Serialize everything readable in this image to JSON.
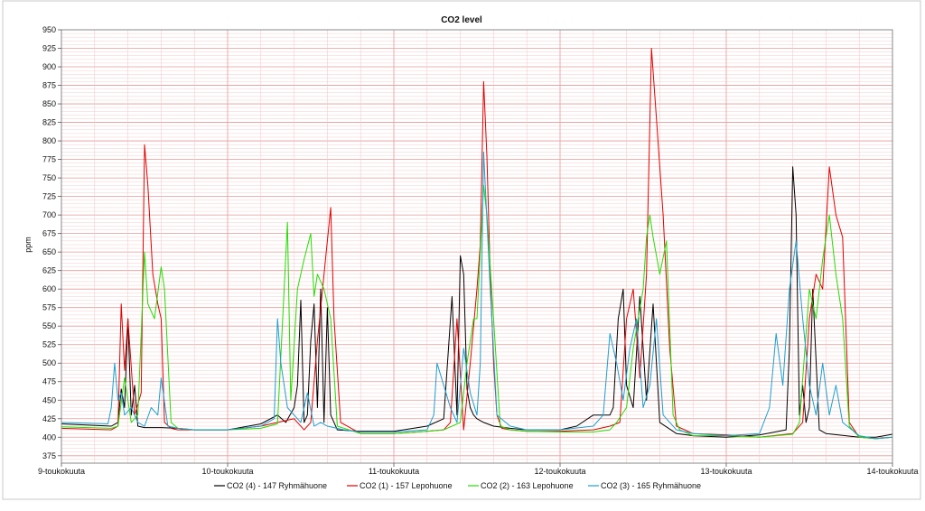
{
  "chart_data": {
    "type": "line",
    "title": "CO2 level",
    "ylabel": "ppm",
    "xlabel": "",
    "ylim": [
      365,
      950
    ],
    "yticks": [
      375,
      400,
      425,
      450,
      475,
      500,
      525,
      550,
      575,
      600,
      625,
      650,
      675,
      700,
      725,
      750,
      775,
      800,
      825,
      850,
      875,
      900,
      925,
      950
    ],
    "x_ticks": [
      "9-toukokuuta",
      "10-toukokuuta",
      "11-toukokuuta",
      "12-toukokuuta",
      "13-toukokuuta",
      "14-toukokuuta"
    ],
    "xlim": [
      0,
      5
    ],
    "grid": true,
    "legend": "bottom",
    "series": [
      {
        "name": "CO2  (4) - 147 Ryhmähuone",
        "color": "#000000",
        "x": [
          0,
          0.3,
          0.34,
          0.36,
          0.38,
          0.4,
          0.42,
          0.44,
          0.46,
          0.5,
          0.6,
          0.7,
          0.8,
          1.0,
          1.2,
          1.3,
          1.35,
          1.4,
          1.42,
          1.44,
          1.46,
          1.48,
          1.5,
          1.52,
          1.54,
          1.56,
          1.58,
          1.6,
          1.62,
          1.66,
          1.8,
          2.0,
          2.2,
          2.3,
          2.35,
          2.38,
          2.4,
          2.42,
          2.44,
          2.46,
          2.48,
          2.5,
          2.54,
          2.6,
          2.7,
          2.8,
          3.0,
          3.1,
          3.2,
          3.3,
          3.32,
          3.35,
          3.38,
          3.4,
          3.44,
          3.48,
          3.52,
          3.56,
          3.6,
          3.7,
          3.8,
          4.0,
          4.2,
          4.36,
          4.38,
          4.4,
          4.42,
          4.44,
          4.46,
          4.48,
          4.5,
          4.52,
          4.56,
          4.6,
          4.8,
          4.9,
          5.0
        ],
        "values": [
          418,
          415,
          420,
          465,
          440,
          560,
          430,
          470,
          415,
          413,
          413,
          412,
          410,
          410,
          418,
          430,
          420,
          440,
          470,
          585,
          420,
          430,
          530,
          580,
          440,
          600,
          420,
          575,
          430,
          410,
          408,
          408,
          415,
          425,
          590,
          430,
          645,
          620,
          465,
          440,
          430,
          425,
          420,
          415,
          412,
          410,
          410,
          415,
          430,
          430,
          440,
          560,
          600,
          470,
          440,
          590,
          450,
          580,
          420,
          405,
          402,
          400,
          403,
          410,
          520,
          765,
          700,
          430,
          470,
          420,
          440,
          600,
          410,
          405,
          400,
          400,
          404
        ]
      },
      {
        "name": "CO2 (1) - 157 Lepohuone",
        "color": "#e00000",
        "x": [
          0,
          0.3,
          0.34,
          0.36,
          0.38,
          0.4,
          0.44,
          0.48,
          0.5,
          0.52,
          0.55,
          0.58,
          0.6,
          0.62,
          0.66,
          0.7,
          0.8,
          1.0,
          1.2,
          1.3,
          1.4,
          1.46,
          1.5,
          1.54,
          1.58,
          1.62,
          1.64,
          1.68,
          1.8,
          2.0,
          2.2,
          2.3,
          2.34,
          2.38,
          2.42,
          2.46,
          2.5,
          2.52,
          2.54,
          2.56,
          2.58,
          2.6,
          2.62,
          2.65,
          2.7,
          2.8,
          3.0,
          3.2,
          3.3,
          3.36,
          3.4,
          3.44,
          3.48,
          3.52,
          3.55,
          3.58,
          3.62,
          3.66,
          3.7,
          3.8,
          4.0,
          4.2,
          4.4,
          4.46,
          4.5,
          4.54,
          4.58,
          4.62,
          4.66,
          4.7,
          4.74,
          4.8,
          4.9,
          5.0
        ],
        "values": [
          412,
          410,
          415,
          580,
          490,
          560,
          430,
          460,
          795,
          740,
          620,
          580,
          560,
          420,
          412,
          410,
          410,
          410,
          415,
          420,
          425,
          410,
          420,
          530,
          620,
          710,
          560,
          420,
          405,
          405,
          408,
          410,
          420,
          560,
          410,
          500,
          600,
          660,
          880,
          780,
          620,
          500,
          430,
          412,
          410,
          408,
          408,
          410,
          415,
          420,
          560,
          600,
          480,
          620,
          925,
          830,
          700,
          520,
          415,
          405,
          403,
          400,
          405,
          420,
          560,
          620,
          600,
          765,
          700,
          670,
          420,
          400,
          398,
          400
        ]
      },
      {
        "name": "CO2 (2) - 163 Lepohuone",
        "color": "#22dd00",
        "x": [
          0,
          0.3,
          0.34,
          0.38,
          0.42,
          0.46,
          0.5,
          0.52,
          0.56,
          0.6,
          0.62,
          0.66,
          0.7,
          0.8,
          1.0,
          1.2,
          1.3,
          1.36,
          1.38,
          1.42,
          1.46,
          1.5,
          1.52,
          1.54,
          1.58,
          1.62,
          1.66,
          1.8,
          2.0,
          2.2,
          2.3,
          2.4,
          2.44,
          2.48,
          2.5,
          2.54,
          2.56,
          2.6,
          2.64,
          2.7,
          2.8,
          3.0,
          3.2,
          3.3,
          3.34,
          3.4,
          3.44,
          3.5,
          3.52,
          3.54,
          3.56,
          3.6,
          3.64,
          3.68,
          3.72,
          3.8,
          4.0,
          4.2,
          4.4,
          4.44,
          4.5,
          4.54,
          4.58,
          4.62,
          4.66,
          4.7,
          4.74,
          4.8,
          4.9,
          5.0
        ],
        "values": [
          414,
          412,
          415,
          480,
          420,
          430,
          650,
          580,
          560,
          630,
          600,
          420,
          412,
          410,
          410,
          412,
          418,
          690,
          450,
          600,
          640,
          675,
          590,
          620,
          600,
          560,
          415,
          405,
          405,
          408,
          410,
          420,
          500,
          560,
          560,
          740,
          700,
          560,
          415,
          410,
          408,
          407,
          407,
          410,
          420,
          440,
          520,
          600,
          670,
          700,
          670,
          620,
          665,
          430,
          410,
          402,
          402,
          400,
          404,
          420,
          600,
          560,
          640,
          700,
          620,
          560,
          415,
          400,
          398,
          400
        ]
      },
      {
        "name": "CO2 (3) - 165 Ryhmähuone",
        "color": "#1aa0d0",
        "x": [
          0,
          0.28,
          0.3,
          0.32,
          0.34,
          0.36,
          0.38,
          0.42,
          0.46,
          0.5,
          0.54,
          0.58,
          0.6,
          0.64,
          0.7,
          0.8,
          1.0,
          1.2,
          1.28,
          1.3,
          1.32,
          1.34,
          1.36,
          1.4,
          1.44,
          1.48,
          1.52,
          1.56,
          1.6,
          1.7,
          1.8,
          2.0,
          2.2,
          2.24,
          2.26,
          2.3,
          2.34,
          2.38,
          2.42,
          2.46,
          2.5,
          2.52,
          2.54,
          2.58,
          2.62,
          2.7,
          2.8,
          3.0,
          3.2,
          3.26,
          3.3,
          3.34,
          3.38,
          3.42,
          3.46,
          3.5,
          3.54,
          3.58,
          3.62,
          3.7,
          3.8,
          4.0,
          4.2,
          4.26,
          4.3,
          4.34,
          4.38,
          4.42,
          4.46,
          4.5,
          4.54,
          4.58,
          4.62,
          4.66,
          4.7,
          4.8,
          4.9,
          5.0
        ],
        "values": [
          420,
          418,
          440,
          500,
          450,
          460,
          430,
          440,
          420,
          415,
          440,
          430,
          480,
          415,
          412,
          410,
          410,
          415,
          425,
          560,
          500,
          470,
          440,
          430,
          420,
          460,
          415,
          420,
          415,
          410,
          407,
          407,
          410,
          430,
          500,
          470,
          440,
          420,
          520,
          460,
          430,
          500,
          785,
          600,
          430,
          415,
          410,
          410,
          415,
          430,
          540,
          500,
          450,
          520,
          560,
          440,
          470,
          560,
          430,
          410,
          405,
          402,
          405,
          440,
          540,
          470,
          600,
          665,
          560,
          470,
          430,
          500,
          430,
          470,
          420,
          402,
          398,
          400
        ]
      }
    ]
  }
}
